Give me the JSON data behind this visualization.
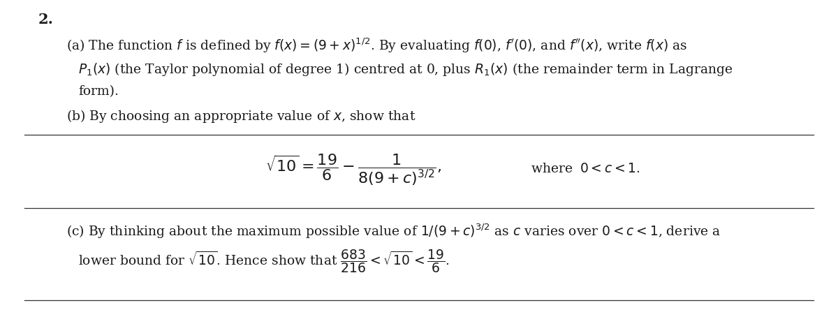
{
  "bg_color": "#ffffff",
  "text_color": "#1a1a1a",
  "line_color": "#333333",
  "fig_width": 12.0,
  "fig_height": 4.44,
  "dpi": 100,
  "number_label": "\\textbf{2.}",
  "part_a_line1": "(a) The function $f$ is defined by $f(x) = (9 + x)^{1/2}$. By evaluating $f(0)$, $f'(0)$, and $f''(x)$, write $f(x)$ as",
  "part_a_line2": "$P_1(x)$ (the Taylor polynomial of degree 1) centred at 0, plus $R_1(x)$ (the remainder term in Lagrange",
  "part_a_line3": "form).",
  "part_b_intro": "(b) By choosing an appropriate value of $x$, show that",
  "part_b_formula": "$\\sqrt{10} = \\dfrac{19}{6} - \\dfrac{1}{8(9 + c)^{3/2}},$",
  "part_b_where": "where $\\;0 < c < 1.$",
  "part_c_line1": "(c) By thinking about the maximum possible value of $1/(9+c)^{3/2}$ as $c$ varies over $0 < c < 1$, derive a",
  "part_c_line2": "lower bound for $\\sqrt{10}$. Hence show that $\\dfrac{683}{216} < \\sqrt{10} < \\dfrac{19}{6}$.",
  "font_size_main": 13.5,
  "font_size_number": 15,
  "font_size_formula": 16
}
